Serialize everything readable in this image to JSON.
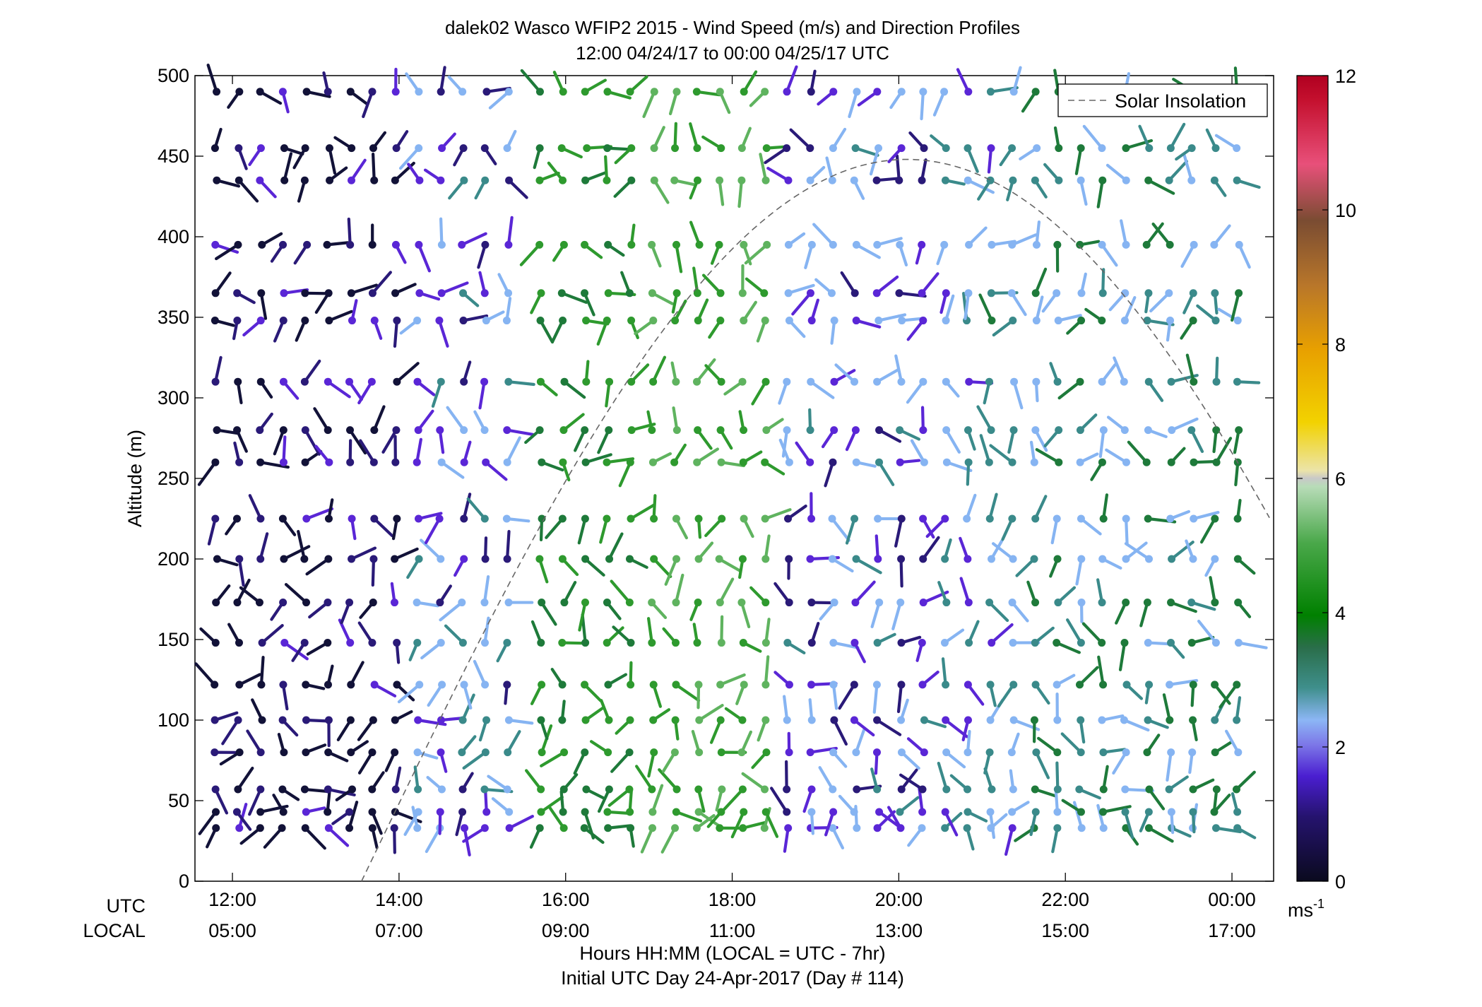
{
  "chart_data": {
    "type": "scatter",
    "title": "dalek02 Wasco WFIP2 2015 - Wind Speed (m/s) and Direction Profiles",
    "subtitle": "12:00 04/24/17 to 00:00 04/25/17  UTC",
    "ylabel": "Altitude (m)",
    "xlabel": "Hours HH:MM  (LOCAL = UTC - 7hr)",
    "xlabel2": "Initial UTC Day 24-Apr-2017 (Day # 114)",
    "x_unit": "hours UTC",
    "xlim": [
      11.55,
      24.5
    ],
    "ylim": [
      0,
      500
    ],
    "yticks": [
      0,
      50,
      100,
      150,
      200,
      250,
      300,
      350,
      400,
      450,
      500
    ],
    "xticks": [
      {
        "x": 12,
        "utc": "12:00",
        "local": "05:00"
      },
      {
        "x": 14,
        "utc": "14:00",
        "local": "07:00"
      },
      {
        "x": 16,
        "utc": "16:00",
        "local": "09:00"
      },
      {
        "x": 18,
        "utc": "18:00",
        "local": "11:00"
      },
      {
        "x": 20,
        "utc": "20:00",
        "local": "13:00"
      },
      {
        "x": 22,
        "utc": "22:00",
        "local": "15:00"
      },
      {
        "x": 24,
        "utc": "00:00",
        "local": "17:00"
      }
    ],
    "row_label_utc": "UTC",
    "row_label_local": "LOCAL",
    "legend": {
      "entry": "Solar Insolation",
      "placement": "top-right"
    },
    "colorbar": {
      "min": 0,
      "max": 12,
      "ticks": [
        0,
        2,
        4,
        6,
        8,
        10,
        12
      ],
      "unit": "ms",
      "unit_exp": "-1"
    },
    "solar_insolation_peak_altitude": 448,
    "solar_insolation_peak_time": 20.1,
    "altitude_levels": [
      33,
      43,
      57,
      80,
      100,
      122,
      148,
      173,
      200,
      225,
      260,
      280,
      310,
      348,
      365,
      395,
      435,
      455,
      490
    ],
    "time_segments": [
      {
        "start": 11.8,
        "end": 15.4
      },
      {
        "start": 15.7,
        "end": 24.1
      }
    ],
    "speed_by_period": [
      {
        "from": 11.8,
        "to": 14.0,
        "speed_mps": 1.0
      },
      {
        "from": 14.0,
        "to": 15.5,
        "speed_mps": 2.0
      },
      {
        "from": 15.5,
        "to": 17.0,
        "speed_mps": 4.0
      },
      {
        "from": 17.0,
        "to": 18.6,
        "speed_mps": 5.0
      },
      {
        "from": 18.6,
        "to": 20.3,
        "speed_mps": 2.0
      },
      {
        "from": 20.3,
        "to": 21.5,
        "speed_mps": 2.5
      },
      {
        "from": 21.5,
        "to": 24.1,
        "speed_mps": 3.0
      }
    ],
    "note_barbs": "Wind direction barbs at each altitude/time; tail points toward wind direction, color = speed"
  }
}
